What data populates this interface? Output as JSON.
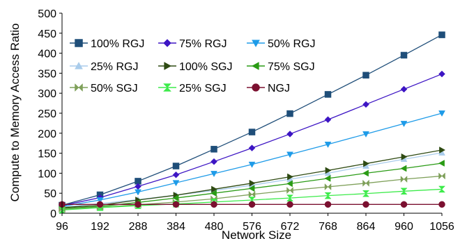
{
  "chart_data": {
    "type": "line",
    "x": [
      96,
      192,
      288,
      384,
      480,
      576,
      672,
      768,
      864,
      960,
      1056
    ],
    "xlabel": "Network Size",
    "ylabel": "Compute to Memory Access Ratio",
    "ylim": [
      0,
      500
    ],
    "yticks": [
      0,
      50,
      100,
      150,
      200,
      250,
      300,
      350,
      400,
      450,
      500
    ],
    "grid": false,
    "legend": "top-left, 4 rows x 3 columns inside plot",
    "series": [
      {
        "name": "100% RGJ",
        "color": "#1F4E79",
        "marker": "square",
        "values": [
          20,
          46,
          80,
          118,
          160,
          203,
          249,
          297,
          345,
          395,
          446
        ]
      },
      {
        "name": "75% RGJ",
        "color": "#3D15C4",
        "marker": "diamond",
        "values": [
          19,
          39,
          67,
          96,
          129,
          163,
          198,
          234,
          272,
          310,
          348
        ]
      },
      {
        "name": "50% RGJ",
        "color": "#1E9BE8",
        "marker": "triangle-down",
        "values": [
          17,
          33,
          53,
          76,
          99,
          122,
          147,
          172,
          198,
          224,
          250
        ]
      },
      {
        "name": "25% RGJ",
        "color": "#A9CCEB",
        "marker": "triangle-up",
        "values": [
          15,
          24,
          34,
          45,
          57,
          70,
          85,
          100,
          118,
          135,
          151
        ]
      },
      {
        "name": "100% SGJ",
        "color": "#2E4A12",
        "marker": "triangle-right",
        "values": [
          14,
          20,
          33,
          45,
          60,
          75,
          91,
          107,
          124,
          141,
          158
        ]
      },
      {
        "name": "75% SGJ",
        "color": "#2A9B15",
        "marker": "triangle-left",
        "values": [
          12,
          17,
          27,
          38,
          50,
          62,
          74,
          87,
          100,
          112,
          125
        ]
      },
      {
        "name": "50% SGJ",
        "color": "#7FA05A",
        "marker": "bowtie",
        "values": [
          10,
          15,
          21,
          28,
          36,
          47,
          57,
          66,
          75,
          85,
          93
        ]
      },
      {
        "name": "25% SGJ",
        "color": "#3CEB4A",
        "marker": "hourglass",
        "values": [
          8,
          14,
          19,
          23,
          28,
          33,
          38,
          44,
          49,
          55,
          60
        ]
      },
      {
        "name": "NGJ",
        "color": "#7B1030",
        "marker": "circle",
        "values": [
          22,
          22,
          22,
          22,
          22,
          22,
          22,
          22,
          22,
          22,
          22
        ]
      }
    ]
  }
}
